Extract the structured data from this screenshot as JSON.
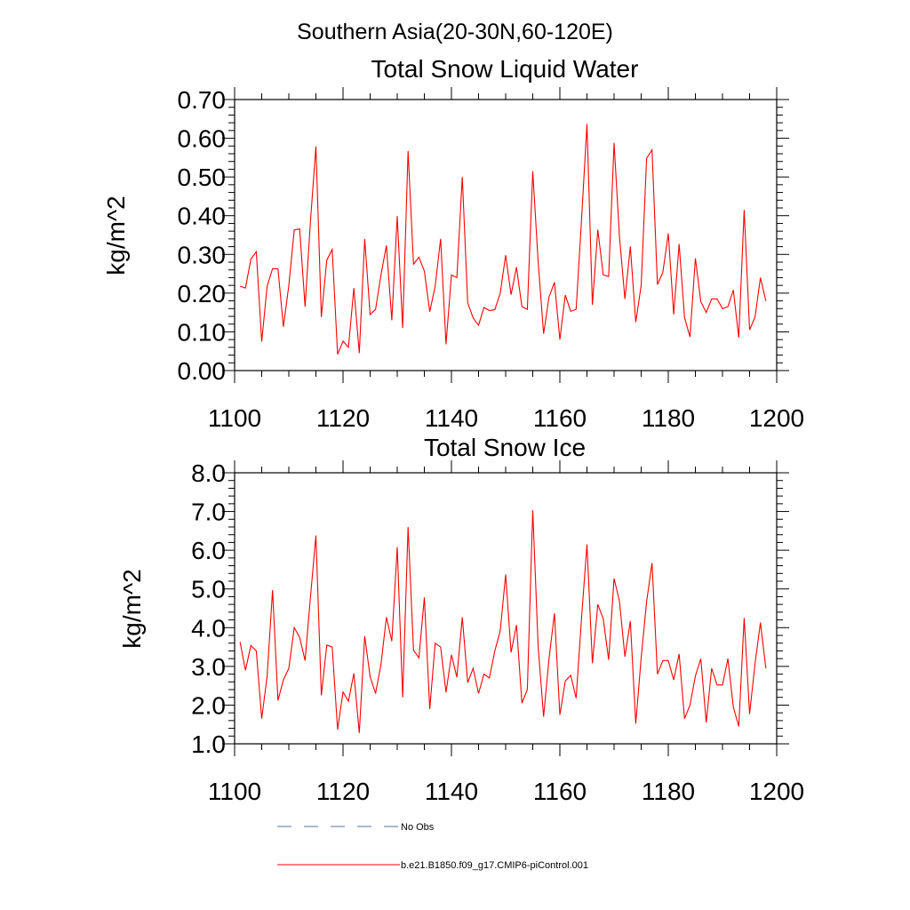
{
  "figure": {
    "title": "Southern Asia(20-30N,60-120E)"
  },
  "chart_data": [
    {
      "type": "line",
      "title": "Total Snow Liquid Water",
      "xlabel": "",
      "ylabel": "kg/m^2",
      "xlim": [
        1100,
        1200
      ],
      "ylim": [
        0.0,
        0.7
      ],
      "x_ticks": [
        1100,
        1120,
        1140,
        1160,
        1180,
        1200
      ],
      "x_tick_labels": [
        "1100",
        "1120",
        "1140",
        "1160",
        "1180",
        "1200"
      ],
      "y_ticks": [
        0.0,
        0.1,
        0.2,
        0.3,
        0.4,
        0.5,
        0.6,
        0.7
      ],
      "y_tick_labels": [
        "0.00",
        "0.10",
        "0.20",
        "0.30",
        "0.40",
        "0.50",
        "0.60",
        "0.70"
      ],
      "x_minor_step": 5,
      "y_minor_step": 0.02,
      "x_start": 1101,
      "series": [
        {
          "name": "b.e21.B1850.f09_g17.CMIP6-piControl.001",
          "color": "#ff0000",
          "values": [
            0.218,
            0.213,
            0.288,
            0.307,
            0.075,
            0.218,
            0.263,
            0.263,
            0.113,
            0.22,
            0.363,
            0.366,
            0.165,
            0.387,
            0.579,
            0.138,
            0.285,
            0.313,
            0.042,
            0.076,
            0.06,
            0.213,
            0.045,
            0.34,
            0.145,
            0.158,
            0.247,
            0.323,
            0.13,
            0.399,
            0.11,
            0.567,
            0.275,
            0.293,
            0.257,
            0.152,
            0.218,
            0.34,
            0.068,
            0.247,
            0.24,
            0.5,
            0.175,
            0.136,
            0.117,
            0.163,
            0.155,
            0.157,
            0.2,
            0.298,
            0.196,
            0.267,
            0.165,
            0.158,
            0.515,
            0.28,
            0.095,
            0.19,
            0.228,
            0.08,
            0.195,
            0.153,
            0.158,
            0.39,
            0.637,
            0.17,
            0.364,
            0.247,
            0.243,
            0.588,
            0.345,
            0.185,
            0.32,
            0.125,
            0.22,
            0.548,
            0.57,
            0.222,
            0.254,
            0.354,
            0.145,
            0.327,
            0.137,
            0.087,
            0.29,
            0.178,
            0.15,
            0.185,
            0.185,
            0.16,
            0.165,
            0.208,
            0.085,
            0.415,
            0.105,
            0.138,
            0.24,
            0.18
          ]
        }
      ]
    },
    {
      "type": "line",
      "title": "Total Snow Ice",
      "xlabel": "",
      "ylabel": "kg/m^2",
      "xlim": [
        1100,
        1200
      ],
      "ylim": [
        1.0,
        8.0
      ],
      "x_ticks": [
        1100,
        1120,
        1140,
        1160,
        1180,
        1200
      ],
      "x_tick_labels": [
        "1100",
        "1120",
        "1140",
        "1160",
        "1180",
        "1200"
      ],
      "y_ticks": [
        1.0,
        2.0,
        3.0,
        4.0,
        5.0,
        6.0,
        7.0,
        8.0
      ],
      "y_tick_labels": [
        "1.0",
        "2.0",
        "3.0",
        "4.0",
        "5.0",
        "6.0",
        "7.0",
        "8.0"
      ],
      "x_minor_step": 5,
      "y_minor_step": 0.2,
      "x_start": 1101,
      "series": [
        {
          "name": "b.e21.B1850.f09_g17.CMIP6-piControl.001",
          "color": "#ff0000",
          "values": [
            3.63,
            2.9,
            3.54,
            3.4,
            1.65,
            2.75,
            4.97,
            2.12,
            2.65,
            2.95,
            4.0,
            3.75,
            3.15,
            4.8,
            6.38,
            2.25,
            3.55,
            3.5,
            1.37,
            2.34,
            2.1,
            2.82,
            1.28,
            3.78,
            2.73,
            2.3,
            3.05,
            4.27,
            3.65,
            6.08,
            2.2,
            6.6,
            3.42,
            3.22,
            4.78,
            1.9,
            3.6,
            3.5,
            2.33,
            3.3,
            2.72,
            4.27,
            2.58,
            2.95,
            2.3,
            2.8,
            2.7,
            3.4,
            3.92,
            5.37,
            3.36,
            4.07,
            2.05,
            2.4,
            7.03,
            3.5,
            1.7,
            3.2,
            4.37,
            1.75,
            2.62,
            2.77,
            2.18,
            4.25,
            6.15,
            3.08,
            4.6,
            4.23,
            3.17,
            5.27,
            4.68,
            3.25,
            4.17,
            1.52,
            3.22,
            4.67,
            5.67,
            2.8,
            3.15,
            3.15,
            2.65,
            3.32,
            1.65,
            2.0,
            2.75,
            3.2,
            1.55,
            2.95,
            2.52,
            2.52,
            3.2,
            1.95,
            1.45,
            4.25,
            1.77,
            3.07,
            4.13,
            2.95
          ]
        }
      ]
    }
  ],
  "legend": {
    "items": [
      {
        "label": "No Obs",
        "style": "dashed",
        "color": "#5a6fa8"
      },
      {
        "label": "b.e21.B1850.f09_g17.CMIP6-piControl.001",
        "style": "solid",
        "color": "#ff0000"
      }
    ]
  }
}
